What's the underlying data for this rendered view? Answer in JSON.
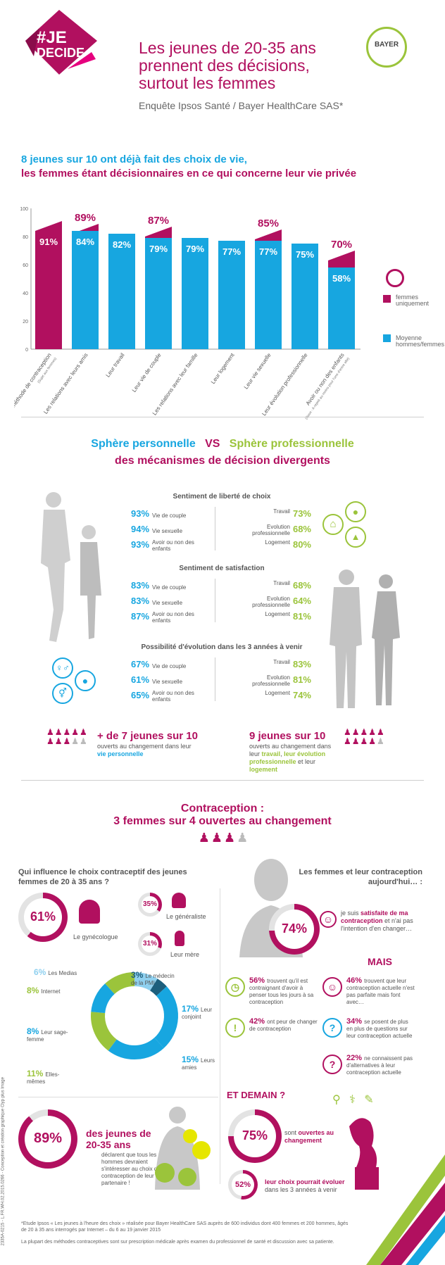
{
  "header": {
    "logo_hash": "#",
    "logo_line1": "JE",
    "logo_line2": "DECIDE",
    "title_lines": [
      "Les jeunes de 20-35 ans",
      "prennent des décisions,",
      "surtout les femmes"
    ],
    "subtitle": "Enquête Ipsos Santé / Bayer HealthCare SAS*",
    "bayer_letters": "BAYER"
  },
  "section1": {
    "headline1": "8 jeunes sur 10 ont déjà fait des choix de vie,",
    "headline2": "les femmes étant décisionnaires en ce qui concerne leur vie privée"
  },
  "chart_data": {
    "type": "bar",
    "ylim": [
      0,
      100
    ],
    "yticks": [
      "0",
      "20",
      "40",
      "60",
      "80",
      "100"
    ],
    "categories": [
      "Leur méthode de contraception",
      "Les relations avec leurs amis",
      "Leur travail",
      "Leur vie de couple",
      "Les relations avec leur famille",
      "Leur logement",
      "Leur vie sexuelle",
      "Leur évolution professionnelle",
      "Avoir ou non des enfants"
    ],
    "category_notes": [
      "(Sujet aux femmes)",
      "",
      "",
      "",
      "",
      "",
      "",
      "",
      "(Base : A rejeté au moins pour l'une d'entre elle)"
    ],
    "series": [
      {
        "name": "Moyenne hommes/femmes",
        "color": "#17a6e0",
        "values": [
          null,
          84,
          82,
          79,
          79,
          77,
          77,
          75,
          58
        ]
      },
      {
        "name": "femmes uniquement",
        "color": "#b1105f",
        "values": [
          91,
          89,
          null,
          87,
          null,
          null,
          85,
          null,
          70
        ]
      }
    ],
    "labels_blue": [
      "",
      "84%",
      "82%",
      "79%",
      "79%",
      "77%",
      "77%",
      "75%",
      "58%"
    ],
    "labels_mag": [
      "91%",
      "89%",
      "",
      "87%",
      "",
      "",
      "85%",
      "",
      "70%"
    ],
    "legend": [
      "femmes uniquement",
      "Moyenne hommes/femmes"
    ]
  },
  "section2": {
    "title_a": "Sphère personnelle",
    "title_vs": "VS",
    "title_b": "Sphère professionnelle",
    "title_2": "des mécanismes de décision divergents",
    "blocks": [
      {
        "title": "Sentiment de liberté de choix",
        "left": [
          [
            "93%",
            "Vie de couple"
          ],
          [
            "94%",
            "Vie sexuelle"
          ],
          [
            "93%",
            "Avoir ou non des enfants"
          ]
        ],
        "right": [
          [
            "Travail",
            "73%"
          ],
          [
            "Evolution professionnelle",
            "68%"
          ],
          [
            "Logement",
            "80%"
          ]
        ]
      },
      {
        "title": "Sentiment de satisfaction",
        "left": [
          [
            "83%",
            "Vie de couple"
          ],
          [
            "83%",
            "Vie sexuelle"
          ],
          [
            "87%",
            "Avoir ou non des enfants"
          ]
        ],
        "right": [
          [
            "Travail",
            "68%"
          ],
          [
            "Evolution professionnelle",
            "64%"
          ],
          [
            "Logement",
            "81%"
          ]
        ]
      },
      {
        "title": "Possibilité d'évolution dans les 3 années à venir",
        "left": [
          [
            "67%",
            "Vie de couple"
          ],
          [
            "61%",
            "Vie sexuelle"
          ],
          [
            "65%",
            "Avoir ou non des enfants"
          ]
        ],
        "right": [
          [
            "Travail",
            "83%"
          ],
          [
            "Evolution professionnelle",
            "81%"
          ],
          [
            "Logement",
            "74%"
          ]
        ]
      }
    ],
    "summary_left_big": "+ de 7 jeunes sur 10",
    "summary_left_small": "ouverts au changement dans leur",
    "summary_left_em": "vie personnelle",
    "summary_right_big": "9 jeunes sur 10",
    "summary_right_small": "ouverts au changement dans leur",
    "summary_right_em1": "travail",
    "summary_right_em2": "leur évolution professionnelle",
    "summary_right_et": "et leur",
    "summary_right_em3": "logement"
  },
  "section3": {
    "title1": "Contraception :",
    "title2": "3 femmes sur 4 ouvertes au changement",
    "q_left": "Qui influence le choix contraceptif des jeunes femmes de 20 à 35 ans ?",
    "q_right": "Les femmes et leur contraception aujourd'hui… :",
    "gyn_pct": "61%",
    "gyn_label": "Le gynécologue",
    "gen_pct": "35%",
    "gen_label": "Le généraliste",
    "mere_pct": "31%",
    "mere_label": "Leur mère",
    "donut_chart": [
      {
        "label": "Les Medias",
        "pct": "6%",
        "value": 6,
        "color": "#8fd0ef"
      },
      {
        "label": "Le médecin de la PMI",
        "pct": "3%",
        "value": 3,
        "color": "#1d5f7d"
      },
      {
        "label": "Leur conjoint",
        "pct": "17%",
        "value": 17,
        "color": "#17a6e0"
      },
      {
        "label": "Leurs amies",
        "pct": "15%",
        "value": 15,
        "color": "#17a6e0"
      },
      {
        "label": "Elles-mêmes",
        "pct": "11%",
        "value": 11,
        "color": "#9bc43b"
      },
      {
        "label": "Leur sage-femme",
        "pct": "8%",
        "value": 8,
        "color": "#17a6e0"
      },
      {
        "label": "Internet",
        "pct": "8%",
        "value": 8,
        "color": "#9bc43b"
      }
    ],
    "pct74": "74%",
    "sat_text1": "je suis",
    "sat_em": "satisfaite de ma contraception",
    "sat_text2": "et n'ai pas l'intention d'en changer…",
    "mais": "MAIS",
    "facts": [
      {
        "pct": "56%",
        "text": "trouvent qu'il est contraignant d'avoir à penser tous les jours à sa contraception"
      },
      {
        "pct": "46%",
        "text": "trouvent que leur contraception actuelle n'est pas parfaite mais font avec…"
      },
      {
        "pct": "42%",
        "text": "ont peur de changer de contraception"
      },
      {
        "pct": "34%",
        "text": "se posent de plus en plus de questions sur leur contraception actuelle"
      },
      {
        "pct": "22%",
        "text": "ne connaissent pas d'alternatives à leur contraception actuelle"
      }
    ],
    "pct89": "89%",
    "men_big": "des jeunes de 20-35 ans",
    "men_text": "déclarent que tous les hommes devraient s'intéresser au choix de contraception de leur partenaire !",
    "demain": "ET DEMAIN ?",
    "pct75": "75%",
    "demain1_a": "sont",
    "demain1_em": "ouvertes au changement",
    "pct52": "52%",
    "demain2_em": "leur choix pourrait évoluer",
    "demain2_b": "dans les 3 années à venir"
  },
  "footer": {
    "note": "*Etude Ipsos « Les jeunes à l'heure des choix » réalisée pour Bayer HealthCare SAS auprès de 600 individus dont 400 femmes et 200 hommes, âgés de 20 à 35 ans interrogés par Internet – du 6 au 19 janvier 2015",
    "note2": "La plupart des méthodes contraceptives sont sur prescription médicale après examen du professionnel de santé et discussion avec sa patiente.",
    "side": "2335A-0215 - L.FR.WH.02.2015.0266 - Conception et création graphique Clyp plus Image"
  },
  "colors": {
    "magenta": "#b1105f",
    "cyan": "#17a6e0",
    "green": "#9bc43b",
    "grey": "#a4a4a4"
  }
}
